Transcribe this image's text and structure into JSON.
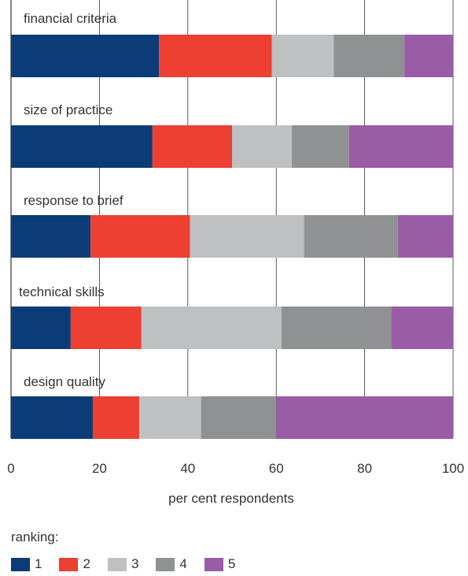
{
  "chart_data": {
    "type": "bar",
    "orientation": "horizontal",
    "stacked": true,
    "categories": [
      "financial criteria",
      "size of practice",
      "response to brief",
      "technical skills",
      "design quality"
    ],
    "series": [
      {
        "name": "1",
        "color": "#0c3c78",
        "values": [
          33.5,
          32,
          18,
          13.5,
          18.5
        ]
      },
      {
        "name": "2",
        "color": "#ee3f33",
        "values": [
          25.5,
          18,
          22.5,
          16,
          10.5
        ]
      },
      {
        "name": "3",
        "color": "#bfc0c2",
        "values": [
          14,
          13.5,
          25.8,
          31.7,
          14
        ]
      },
      {
        "name": "4",
        "color": "#8f9193",
        "values": [
          16,
          13,
          21.2,
          24.8,
          17
        ]
      },
      {
        "name": "5",
        "color": "#9a5ca6",
        "values": [
          11,
          23.5,
          12.5,
          14,
          40
        ]
      }
    ],
    "xlabel": "per cent respondents",
    "xlim": [
      0,
      100
    ],
    "xticks": [
      0,
      20,
      40,
      60,
      80,
      100
    ],
    "grid": true
  },
  "legend": {
    "title": "ranking:",
    "items": [
      {
        "label": "1",
        "color": "#0c3c78"
      },
      {
        "label": "2",
        "color": "#ee3f33"
      },
      {
        "label": "3",
        "color": "#bfc0c2"
      },
      {
        "label": "4",
        "color": "#8f9193"
      },
      {
        "label": "5",
        "color": "#9a5ca6"
      }
    ]
  }
}
